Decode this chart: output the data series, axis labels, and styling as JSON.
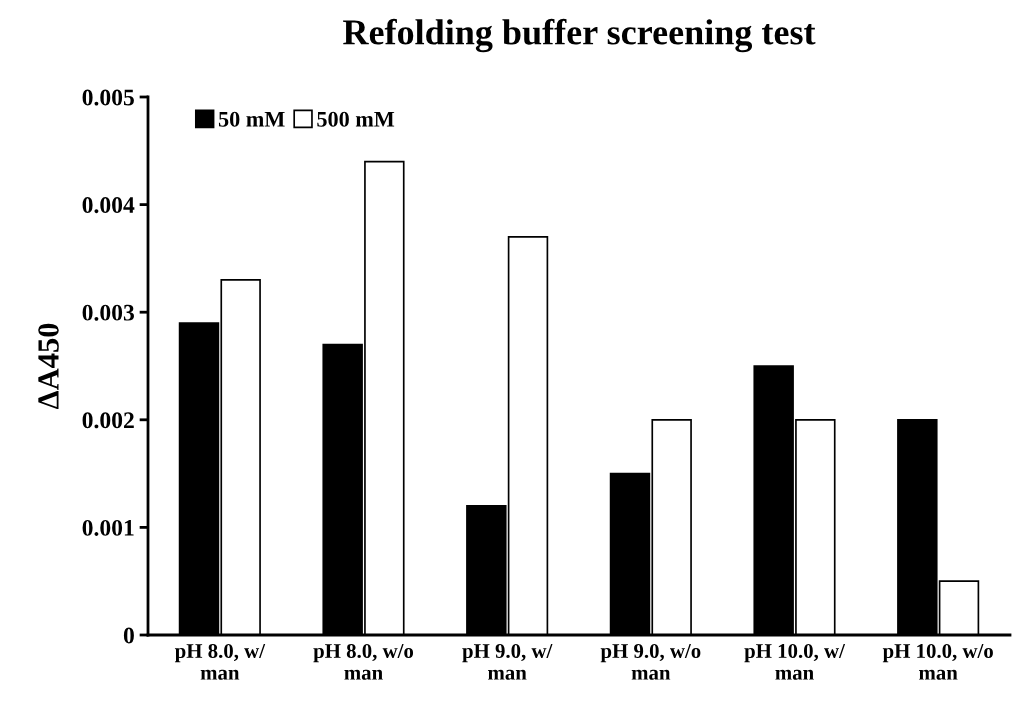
{
  "chart_data": {
    "type": "bar",
    "title": "Refolding buffer screening test",
    "ylabel": "ΔA450",
    "categories": [
      "pH 8.0, w/ man",
      "pH 8.0, w/o man",
      "pH 9.0, w/ man",
      "pH 9.0, w/o man",
      "pH 10.0, w/ man",
      "pH 10.0, w/o man"
    ],
    "series": [
      {
        "name": "50 mM",
        "color": "#000000",
        "values": [
          0.0029,
          0.0027,
          0.0012,
          0.0015,
          0.0025,
          0.002
        ]
      },
      {
        "name": "500 mM",
        "color": "#ffffff",
        "values": [
          0.0033,
          0.0044,
          0.0037,
          0.002,
          0.002,
          0.0005
        ]
      }
    ],
    "ylim": [
      0,
      0.005
    ],
    "yticks": [
      0,
      0.001,
      0.002,
      0.003,
      0.004,
      0.005
    ],
    "grid": false,
    "legend": "top left"
  }
}
